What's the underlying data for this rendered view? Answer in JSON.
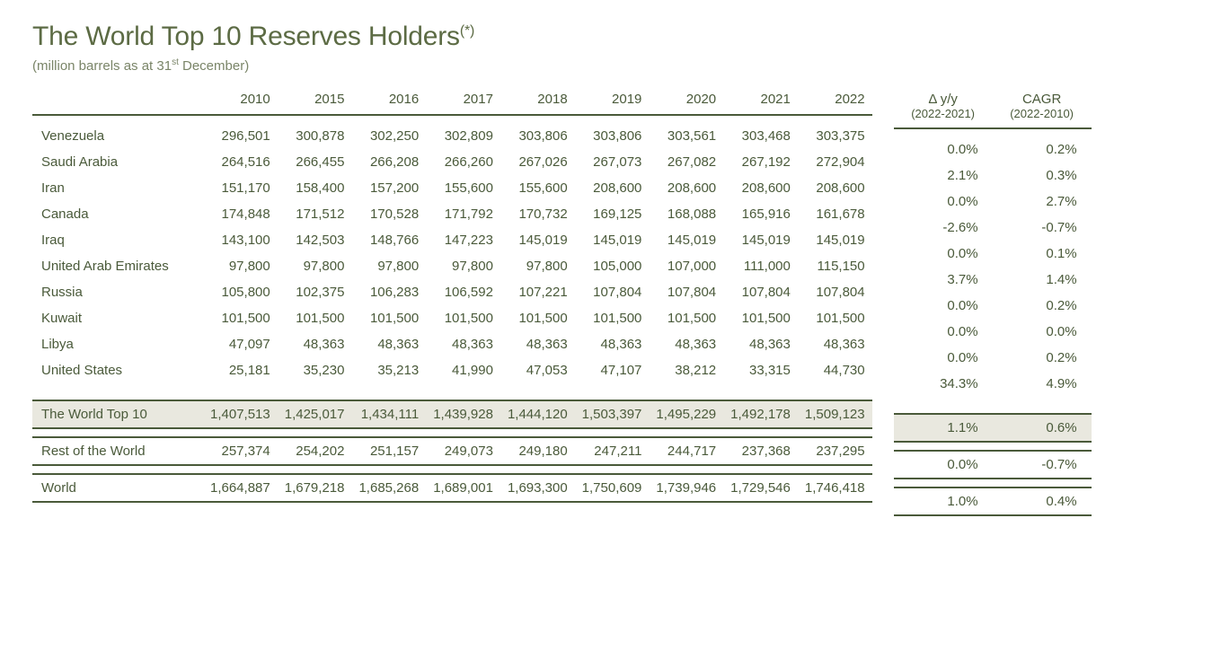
{
  "title_prefix": "The World Top 10 Reserves Holders",
  "title_suffix": "(*)",
  "subtitle_prefix": "(million barrels as at 31",
  "subtitle_sup": "st",
  "subtitle_suffix": " December)",
  "years": [
    "2010",
    "2015",
    "2016",
    "2017",
    "2018",
    "2019",
    "2020",
    "2021",
    "2022"
  ],
  "delta_h1": "Δ y/y",
  "delta_h2": "(2022-2021)",
  "cagr_h1": "CAGR",
  "cagr_h2": "(2022-2010)",
  "rows": [
    {
      "label": "Venezuela",
      "v": [
        "296,501",
        "300,878",
        "302,250",
        "302,809",
        "303,806",
        "303,806",
        "303,561",
        "303,468",
        "303,375"
      ],
      "d": "0.0%",
      "c": "0.2%"
    },
    {
      "label": "Saudi Arabia",
      "v": [
        "264,516",
        "266,455",
        "266,208",
        "266,260",
        "267,026",
        "267,073",
        "267,082",
        "267,192",
        "272,904"
      ],
      "d": "2.1%",
      "c": "0.3%"
    },
    {
      "label": "Iran",
      "v": [
        "151,170",
        "158,400",
        "157,200",
        "155,600",
        "155,600",
        "208,600",
        "208,600",
        "208,600",
        "208,600"
      ],
      "d": "0.0%",
      "c": "2.7%"
    },
    {
      "label": "Canada",
      "v": [
        "174,848",
        "171,512",
        "170,528",
        "171,792",
        "170,732",
        "169,125",
        "168,088",
        "165,916",
        "161,678"
      ],
      "d": "-2.6%",
      "c": "-0.7%"
    },
    {
      "label": "Iraq",
      "v": [
        "143,100",
        "142,503",
        "148,766",
        "147,223",
        "145,019",
        "145,019",
        "145,019",
        "145,019",
        "145,019"
      ],
      "d": "0.0%",
      "c": "0.1%"
    },
    {
      "label": "United Arab Emirates",
      "v": [
        "97,800",
        "97,800",
        "97,800",
        "97,800",
        "97,800",
        "105,000",
        "107,000",
        "111,000",
        "115,150"
      ],
      "d": "3.7%",
      "c": "1.4%"
    },
    {
      "label": "Russia",
      "v": [
        "105,800",
        "102,375",
        "106,283",
        "106,592",
        "107,221",
        "107,804",
        "107,804",
        "107,804",
        "107,804"
      ],
      "d": "0.0%",
      "c": "0.2%"
    },
    {
      "label": "Kuwait",
      "v": [
        "101,500",
        "101,500",
        "101,500",
        "101,500",
        "101,500",
        "101,500",
        "101,500",
        "101,500",
        "101,500"
      ],
      "d": "0.0%",
      "c": "0.0%"
    },
    {
      "label": "Libya",
      "v": [
        "47,097",
        "48,363",
        "48,363",
        "48,363",
        "48,363",
        "48,363",
        "48,363",
        "48,363",
        "48,363"
      ],
      "d": "0.0%",
      "c": "0.2%"
    },
    {
      "label": "United States",
      "v": [
        "25,181",
        "35,230",
        "35,213",
        "41,990",
        "47,053",
        "47,107",
        "38,212",
        "33,315",
        "44,730"
      ],
      "d": "34.3%",
      "c": "4.9%"
    }
  ],
  "top10": {
    "label": "The World Top 10",
    "v": [
      "1,407,513",
      "1,425,017",
      "1,434,111",
      "1,439,928",
      "1,444,120",
      "1,503,397",
      "1,495,229",
      "1,492,178",
      "1,509,123"
    ],
    "d": "1.1%",
    "c": "0.6%"
  },
  "rest": {
    "label": "Rest of the World",
    "v": [
      "257,374",
      "254,202",
      "251,157",
      "249,073",
      "249,180",
      "247,211",
      "244,717",
      "237,368",
      "237,295"
    ],
    "d": "0.0%",
    "c": "-0.7%"
  },
  "world": {
    "label": "World",
    "v": [
      "1,664,887",
      "1,679,218",
      "1,685,268",
      "1,689,001",
      "1,693,300",
      "1,750,609",
      "1,739,946",
      "1,729,546",
      "1,746,418"
    ],
    "d": "1.0%",
    "c": "0.4%"
  }
}
